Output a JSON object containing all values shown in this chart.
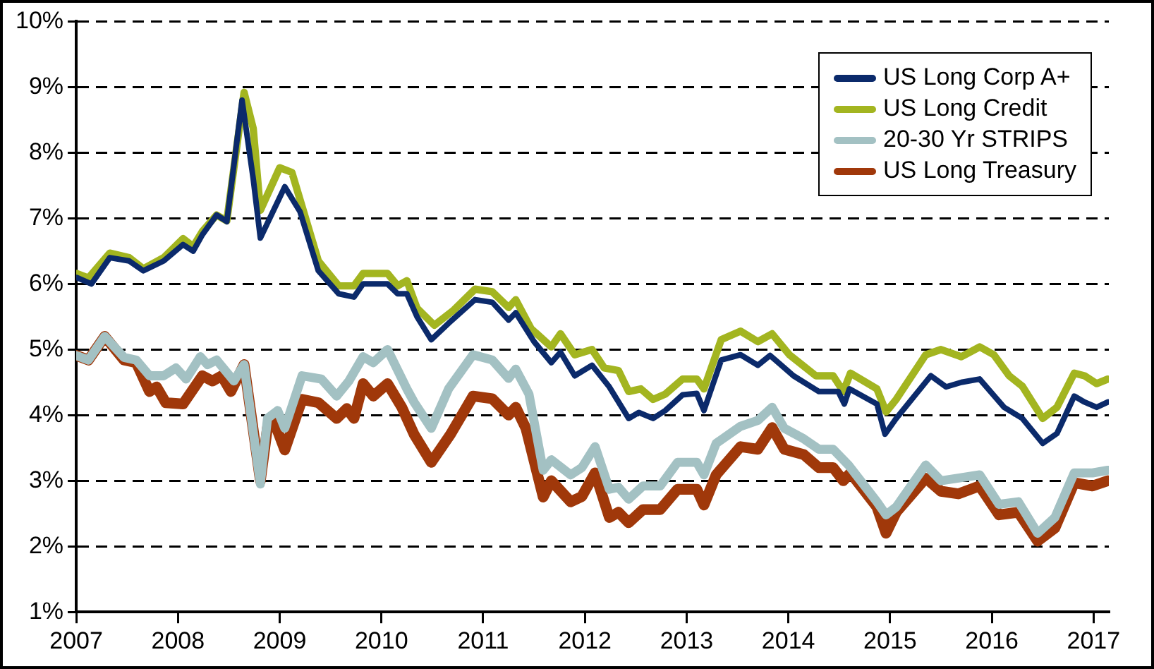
{
  "chart_data": {
    "type": "line",
    "xlim": [
      2007,
      2017.15
    ],
    "xticks": [
      2007,
      2008,
      2009,
      2010,
      2011,
      2012,
      2013,
      2014,
      2015,
      2016,
      2017
    ],
    "ylim": [
      1,
      10
    ],
    "yticks": [
      {
        "value": 1,
        "label": "1%"
      },
      {
        "value": 2,
        "label": "2%"
      },
      {
        "value": 3,
        "label": "3%"
      },
      {
        "value": 4,
        "label": "4%"
      },
      {
        "value": 5,
        "label": "5%"
      },
      {
        "value": 6,
        "label": "6%"
      },
      {
        "value": 7,
        "label": "7%"
      },
      {
        "value": 8,
        "label": "8%"
      },
      {
        "value": 9,
        "label": "9%"
      },
      {
        "value": 10,
        "label": "10%"
      }
    ],
    "grid": "y",
    "legend": "top right",
    "marker": "none",
    "line_style": "solid",
    "series": [
      {
        "name": "US Long Corp A+",
        "color": "#0b2a6b",
        "x": [
          2007,
          2007.15,
          2007.33,
          2007.52,
          2007.66,
          2007.86,
          2008.05,
          2008.15,
          2008.24,
          2008.38,
          2008.48,
          2008.63,
          2008.74,
          2008.81,
          2009.05,
          2009.2,
          2009.38,
          2009.58,
          2009.73,
          2009.82,
          2010.06,
          2010.16,
          2010.25,
          2010.35,
          2010.49,
          2010.66,
          2010.92,
          2011.09,
          2011.25,
          2011.32,
          2011.5,
          2011.67,
          2011.76,
          2011.9,
          2012.07,
          2012.24,
          2012.43,
          2012.53,
          2012.67,
          2012.79,
          2012.96,
          2013.1,
          2013.17,
          2013.34,
          2013.53,
          2013.7,
          2013.82,
          2014.05,
          2014.3,
          2014.49,
          2014.55,
          2014.6,
          2014.87,
          2014.95,
          2015.06,
          2015.4,
          2015.55,
          2015.7,
          2015.88,
          2016.12,
          2016.3,
          2016.5,
          2016.64,
          2016.81,
          2016.91,
          2017.03,
          2017.14
        ],
        "values": [
          6.1,
          6.0,
          6.4,
          6.35,
          6.2,
          6.35,
          6.6,
          6.5,
          6.75,
          7.05,
          6.95,
          8.8,
          7.6,
          6.7,
          7.48,
          7.1,
          6.2,
          5.85,
          5.8,
          6.0,
          6.0,
          5.85,
          5.85,
          5.5,
          5.15,
          5.4,
          5.76,
          5.72,
          5.45,
          5.56,
          5.12,
          4.8,
          4.96,
          4.6,
          4.76,
          4.43,
          3.95,
          4.04,
          3.95,
          4.07,
          4.31,
          4.33,
          4.07,
          4.84,
          4.92,
          4.76,
          4.91,
          4.6,
          4.36,
          4.36,
          4.17,
          4.4,
          4.17,
          3.71,
          3.95,
          4.6,
          4.43,
          4.5,
          4.55,
          4.12,
          3.95,
          3.57,
          3.72,
          4.29,
          4.2,
          4.12,
          4.2
        ]
      },
      {
        "name": "US Long Credit",
        "color": "#a3b520",
        "x": [
          2007,
          2007.12,
          2007.33,
          2007.52,
          2007.66,
          2007.86,
          2008.05,
          2008.15,
          2008.24,
          2008.38,
          2008.48,
          2008.65,
          2008.74,
          2008.81,
          2009.0,
          2009.12,
          2009.38,
          2009.58,
          2009.73,
          2009.82,
          2010.06,
          2010.16,
          2010.25,
          2010.35,
          2010.52,
          2010.71,
          2010.92,
          2011.09,
          2011.25,
          2011.32,
          2011.47,
          2011.67,
          2011.76,
          2011.9,
          2012.07,
          2012.19,
          2012.33,
          2012.43,
          2012.55,
          2012.67,
          2012.79,
          2012.96,
          2013.1,
          2013.17,
          2013.34,
          2013.53,
          2013.7,
          2013.84,
          2014.01,
          2014.27,
          2014.44,
          2014.54,
          2014.61,
          2014.87,
          2014.96,
          2015.06,
          2015.35,
          2015.5,
          2015.7,
          2015.88,
          2016.02,
          2016.17,
          2016.3,
          2016.5,
          2016.64,
          2016.81,
          2016.91,
          2017.03,
          2017.14
        ],
        "values": [
          6.16,
          6.09,
          6.47,
          6.4,
          6.23,
          6.4,
          6.69,
          6.57,
          6.8,
          7.05,
          6.96,
          8.92,
          8.37,
          7.12,
          7.77,
          7.7,
          6.35,
          5.97,
          5.97,
          6.16,
          6.16,
          5.97,
          6.05,
          5.63,
          5.37,
          5.6,
          5.92,
          5.88,
          5.64,
          5.76,
          5.32,
          5.04,
          5.24,
          4.92,
          5.0,
          4.72,
          4.68,
          4.36,
          4.4,
          4.24,
          4.32,
          4.55,
          4.55,
          4.4,
          5.15,
          5.28,
          5.12,
          5.24,
          4.92,
          4.6,
          4.6,
          4.36,
          4.64,
          4.4,
          4.05,
          4.24,
          4.92,
          5.0,
          4.89,
          5.04,
          4.92,
          4.6,
          4.44,
          3.95,
          4.12,
          4.64,
          4.6,
          4.48,
          4.55
        ]
      },
      {
        "name": "20-30 Yr STRIPS",
        "color": "#a3c1c3",
        "x": [
          2007,
          2007.12,
          2007.28,
          2007.47,
          2007.59,
          2007.72,
          2007.86,
          2007.98,
          2008.08,
          2008.22,
          2008.29,
          2008.38,
          2008.55,
          2008.65,
          2008.81,
          2008.88,
          2008.98,
          2009.05,
          2009.22,
          2009.41,
          2009.56,
          2009.68,
          2009.82,
          2009.92,
          2010.06,
          2010.25,
          2010.32,
          2010.49,
          2010.66,
          2010.9,
          2011.09,
          2011.25,
          2011.32,
          2011.45,
          2011.59,
          2011.67,
          2011.86,
          2011.97,
          2012.1,
          2012.24,
          2012.33,
          2012.43,
          2012.57,
          2012.74,
          2012.91,
          2013.1,
          2013.17,
          2013.29,
          2013.53,
          2013.7,
          2013.84,
          2013.96,
          2014.15,
          2014.3,
          2014.44,
          2014.59,
          2014.87,
          2014.96,
          2015.06,
          2015.35,
          2015.5,
          2015.67,
          2015.88,
          2016.07,
          2016.26,
          2016.45,
          2016.62,
          2016.81,
          2016.99,
          2017.14
        ],
        "values": [
          4.91,
          4.84,
          5.2,
          4.88,
          4.84,
          4.6,
          4.6,
          4.72,
          4.55,
          4.89,
          4.77,
          4.84,
          4.52,
          4.77,
          2.95,
          3.95,
          4.07,
          3.8,
          4.6,
          4.55,
          4.29,
          4.52,
          4.89,
          4.8,
          5.0,
          4.4,
          4.2,
          3.8,
          4.4,
          4.92,
          4.84,
          4.56,
          4.7,
          4.32,
          3.16,
          3.32,
          3.09,
          3.2,
          3.52,
          2.87,
          2.9,
          2.72,
          2.92,
          2.92,
          3.28,
          3.28,
          3.09,
          3.57,
          3.83,
          3.92,
          4.12,
          3.8,
          3.64,
          3.48,
          3.48,
          3.24,
          2.68,
          2.48,
          2.6,
          3.24,
          3.0,
          3.04,
          3.09,
          2.64,
          2.68,
          2.2,
          2.44,
          3.12,
          3.12,
          3.16
        ]
      },
      {
        "name": "US Long Treasury",
        "color": "#a0380a",
        "x": [
          2007,
          2007.12,
          2007.28,
          2007.47,
          2007.59,
          2007.72,
          2007.79,
          2007.88,
          2008.05,
          2008.24,
          2008.34,
          2008.43,
          2008.52,
          2008.65,
          2008.81,
          2008.88,
          2008.95,
          2009.05,
          2009.22,
          2009.38,
          2009.56,
          2009.66,
          2009.73,
          2009.82,
          2009.92,
          2010.06,
          2010.2,
          2010.32,
          2010.49,
          2010.68,
          2010.9,
          2011.09,
          2011.25,
          2011.32,
          2011.42,
          2011.59,
          2011.67,
          2011.86,
          2011.97,
          2012.1,
          2012.24,
          2012.33,
          2012.43,
          2012.57,
          2012.74,
          2012.91,
          2013.1,
          2013.17,
          2013.29,
          2013.53,
          2013.7,
          2013.84,
          2013.96,
          2014.15,
          2014.3,
          2014.44,
          2014.54,
          2014.61,
          2014.87,
          2014.96,
          2015.06,
          2015.35,
          2015.5,
          2015.67,
          2015.88,
          2016.07,
          2016.26,
          2016.45,
          2016.62,
          2016.81,
          2016.99,
          2017.14
        ],
        "values": [
          4.91,
          4.84,
          5.2,
          4.84,
          4.8,
          4.36,
          4.43,
          4.19,
          4.17,
          4.6,
          4.52,
          4.6,
          4.36,
          4.77,
          3.0,
          3.81,
          3.88,
          3.47,
          4.24,
          4.19,
          3.95,
          4.1,
          3.95,
          4.48,
          4.29,
          4.48,
          4.12,
          3.71,
          3.28,
          3.71,
          4.29,
          4.25,
          4.0,
          4.12,
          3.8,
          2.75,
          3.0,
          2.68,
          2.76,
          3.12,
          2.44,
          2.52,
          2.36,
          2.56,
          2.56,
          2.87,
          2.87,
          2.63,
          3.09,
          3.52,
          3.48,
          3.81,
          3.48,
          3.4,
          3.2,
          3.2,
          3.0,
          3.12,
          2.6,
          2.2,
          2.52,
          3.04,
          2.84,
          2.8,
          2.92,
          2.48,
          2.52,
          2.08,
          2.28,
          2.97,
          2.92,
          3.0
        ]
      }
    ]
  }
}
